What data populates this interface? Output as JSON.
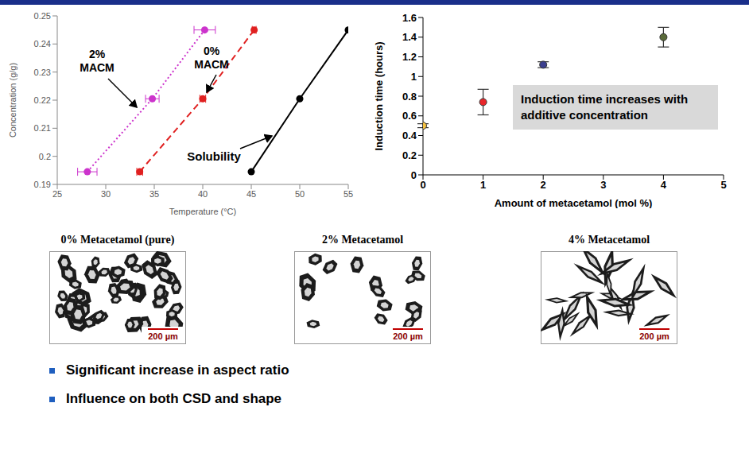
{
  "chart_data": [
    {
      "type": "line",
      "xlabel": "Temperature (°C)",
      "ylabel": "Concentration (g/g)",
      "xlim": [
        25,
        55
      ],
      "xticks": [
        25,
        30,
        35,
        40,
        45,
        50,
        55
      ],
      "ylim": [
        0.19,
        0.25
      ],
      "yticks": [
        0.19,
        0.2,
        0.21,
        0.22,
        0.23,
        0.24,
        0.25
      ],
      "grid": false,
      "series": [
        {
          "name": "2% MACM",
          "color": "#cc33cc",
          "line_style": "dotted",
          "marker": "circle",
          "x": [
            28.1,
            34.8,
            40.2
          ],
          "values": [
            0.1945,
            0.2205,
            0.245
          ],
          "x_errors": [
            1.0,
            0.7,
            1.1
          ]
        },
        {
          "name": "0% MACM",
          "color": "#e02020",
          "line_style": "dashed",
          "marker": "circle",
          "x": [
            33.5,
            40.0,
            45.3
          ],
          "values": [
            0.1945,
            0.2205,
            0.245
          ],
          "x_errors": [
            0.3,
            0.3,
            0.2
          ]
        },
        {
          "name": "Solubility",
          "color": "#000000",
          "line_style": "solid",
          "marker": "circle",
          "x": [
            45,
            50,
            55
          ],
          "values": [
            0.1945,
            0.2205,
            0.245
          ]
        }
      ]
    },
    {
      "type": "scatter",
      "xlabel": "Amount of metacetamol (mol %)",
      "ylabel": "Induction time (hours)",
      "xlim": [
        0,
        5
      ],
      "xticks": [
        0,
        1,
        2,
        3,
        4,
        5
      ],
      "ylim": [
        0,
        1.6
      ],
      "yticks": [
        0,
        0.2,
        0.4,
        0.6,
        0.8,
        1,
        1.2,
        1.4,
        1.6
      ],
      "grid": false,
      "marker": "circle",
      "x": [
        0,
        1,
        2,
        4
      ],
      "values": [
        0.5,
        0.74,
        1.12,
        1.4
      ],
      "y_errors": [
        0.02,
        0.13,
        0.03,
        0.1
      ],
      "colors": [
        "#f5c242",
        "#e8262a",
        "#3c3f8f",
        "#5b6b3a"
      ],
      "annotation": "Induction time increases with additive concentration"
    }
  ],
  "images": [
    {
      "caption": "0% Metacetamol (pure)",
      "scale_bar": "200 µm"
    },
    {
      "caption": "2% Metacetamol",
      "scale_bar": "200 µm"
    },
    {
      "caption": "4% Metacetamol",
      "scale_bar": "200 µm"
    }
  ],
  "bullets": [
    "Significant increase in aspect ratio",
    "Influence on both CSD and shape"
  ]
}
